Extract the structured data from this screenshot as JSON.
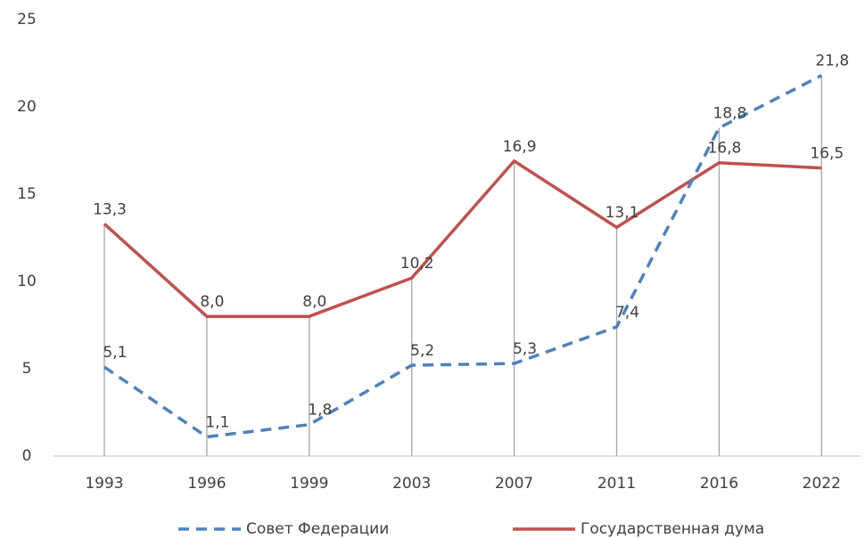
{
  "chart_data": {
    "type": "line",
    "categories": [
      "1993",
      "1996",
      "1999",
      "2003",
      "2007",
      "2011",
      "2016",
      "2022"
    ],
    "series": [
      {
        "name": "Совет Федерации",
        "color": "#4f81bd",
        "dashed": true,
        "values": [
          5.1,
          1.1,
          1.8,
          5.2,
          5.3,
          7.4,
          18.8,
          21.8
        ],
        "value_labels": [
          "5,1",
          "1,1",
          "1,8",
          "5,2",
          "5,3",
          "7,4",
          "18,8",
          "21,8"
        ]
      },
      {
        "name": "Государственная дума",
        "color": "#c0504d",
        "dashed": false,
        "values": [
          13.3,
          8.0,
          8.0,
          10.2,
          16.9,
          13.1,
          16.8,
          16.5
        ],
        "value_labels": [
          "13,3",
          "8,0",
          "8,0",
          "10,2",
          "16,9",
          "13,1",
          "16,8",
          "16,5"
        ]
      }
    ],
    "ylim": [
      0,
      25
    ],
    "yticks": [
      0,
      5,
      10,
      15,
      20,
      25
    ],
    "drop_lines": true,
    "legend": "bottom"
  }
}
